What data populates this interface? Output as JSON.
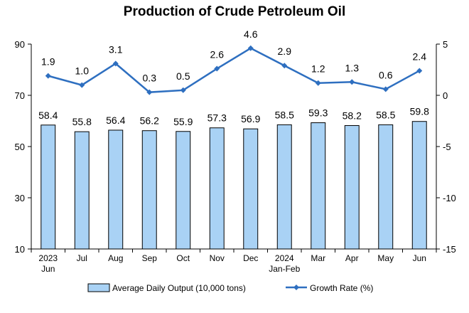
{
  "chart_data": {
    "type": "bar+line",
    "title": "Production of Crude Petroleum Oil",
    "categories": [
      [
        "2023",
        "Jun"
      ],
      [
        "Jul"
      ],
      [
        "Aug"
      ],
      [
        "Sep"
      ],
      [
        "Oct"
      ],
      [
        "Nov"
      ],
      [
        "Dec"
      ],
      [
        "2024",
        "Jan-Feb"
      ],
      [
        "Mar"
      ],
      [
        "Apr"
      ],
      [
        "May"
      ],
      [
        "Jun"
      ]
    ],
    "series": [
      {
        "name": "Average Daily Output (10,000 tons)",
        "kind": "bar",
        "axis": "left",
        "color": "#a9d2f5",
        "values": [
          58.4,
          55.8,
          56.4,
          56.2,
          55.9,
          57.3,
          56.9,
          58.5,
          59.3,
          58.2,
          58.5,
          59.8
        ],
        "labels": [
          "58.4",
          "55.8",
          "56.4",
          "56.2",
          "55.9",
          "57.3",
          "56.9",
          "58.5",
          "59.3",
          "58.2",
          "58.5",
          "59.8"
        ]
      },
      {
        "name": "Growth Rate (%)",
        "kind": "line",
        "axis": "right",
        "color": "#2e6fc0",
        "values": [
          1.9,
          1.0,
          3.1,
          0.3,
          0.5,
          2.6,
          4.6,
          2.9,
          1.2,
          1.3,
          0.6,
          2.4
        ],
        "labels": [
          "1.9",
          "1.0",
          "3.1",
          "0.3",
          "0.5",
          "2.6",
          "4.6",
          "2.9",
          "1.2",
          "1.3",
          "0.6",
          "2.4"
        ]
      }
    ],
    "y_left": {
      "min": 10,
      "max": 90,
      "ticks": [
        "10",
        "30",
        "50",
        "70",
        "90"
      ]
    },
    "y_right": {
      "min": -15,
      "max": 5,
      "ticks": [
        "-15",
        "-10",
        "-5",
        "0",
        "5"
      ]
    },
    "legend": {
      "placement": "bottom"
    },
    "grid": false
  }
}
